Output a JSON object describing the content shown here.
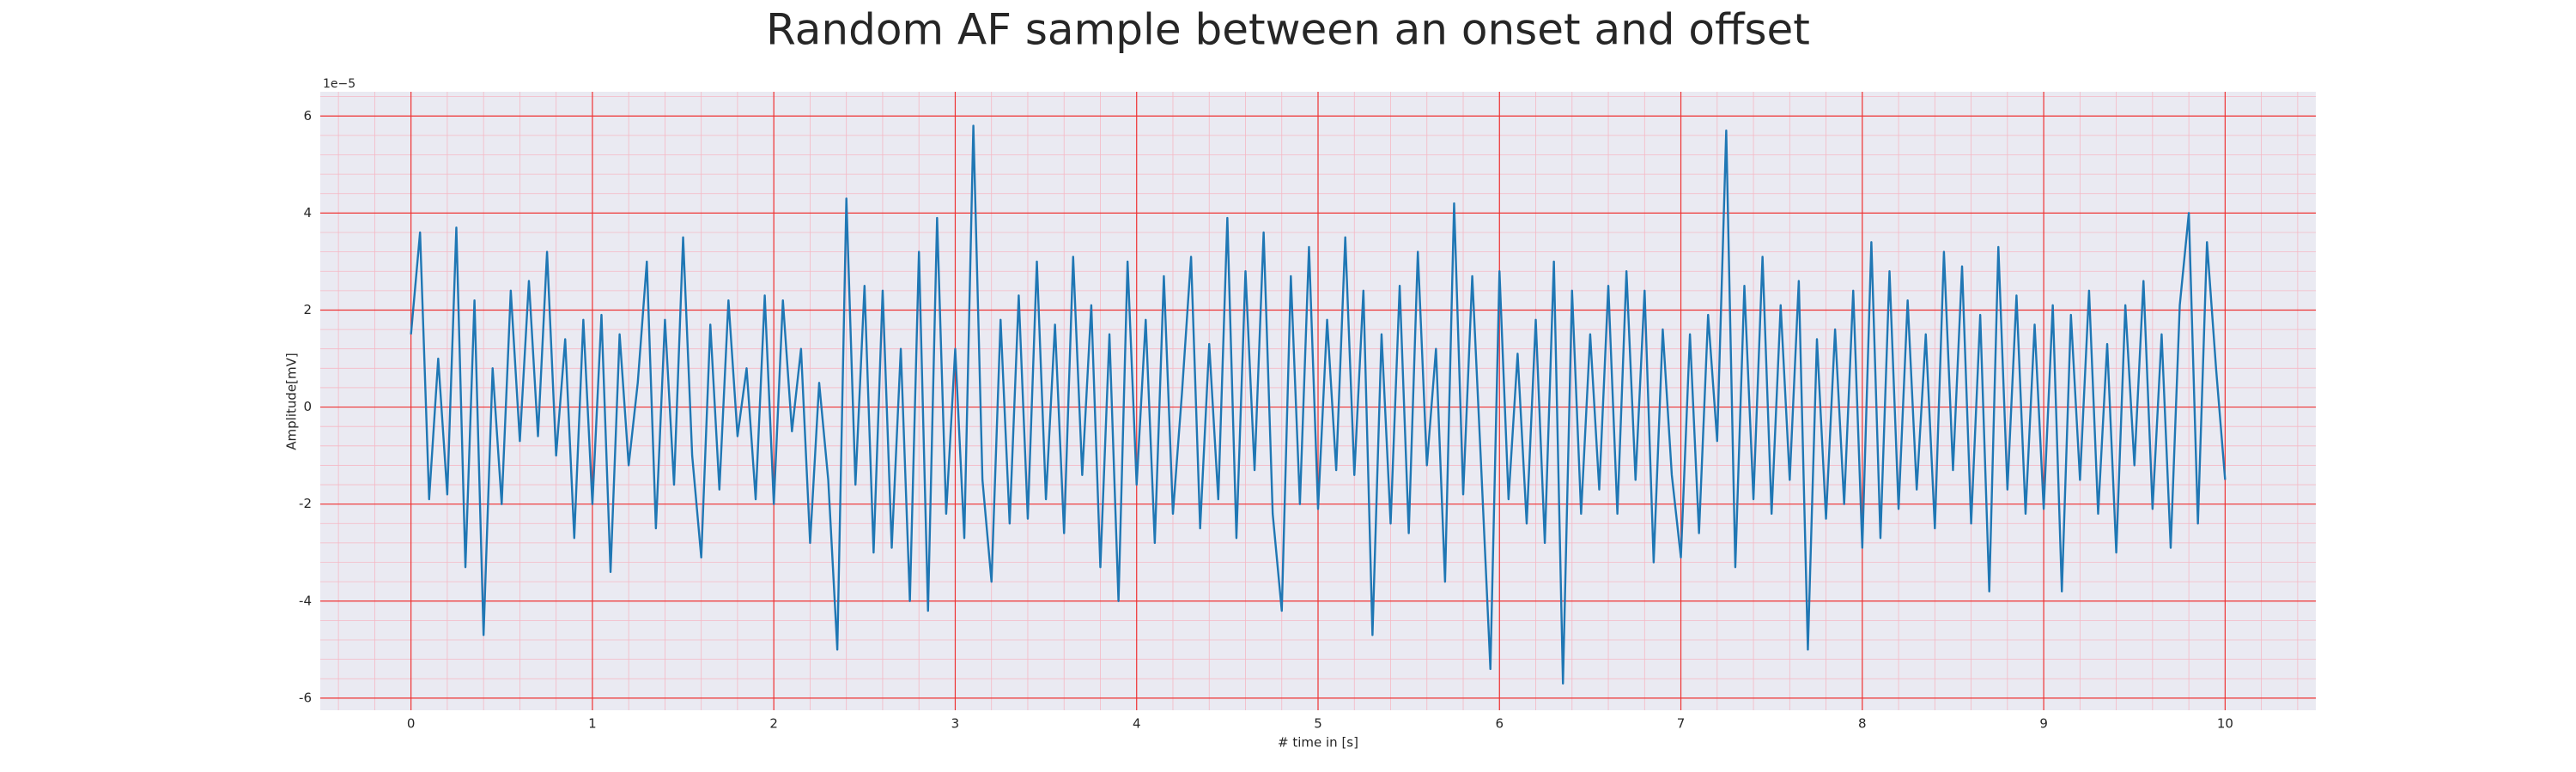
{
  "chart_data": {
    "type": "line",
    "title": "Random AF sample between an onset and offset",
    "x_label": "# time in [s]",
    "y_label": "Amplitude[mV]",
    "y_offset_label": "1e−5",
    "color": "#1f77b4",
    "grid": true,
    "minor_grid": true,
    "xlim": [
      -0.5,
      10.5
    ],
    "ylim": [
      -6.25,
      6.5
    ],
    "xticks": [
      0,
      1,
      2,
      3,
      4,
      5,
      6,
      7,
      8,
      9,
      10
    ],
    "yticks": [
      -6,
      -4,
      -2,
      0,
      2,
      4,
      6
    ],
    "x": [
      0,
      0.05,
      0.1,
      0.15,
      0.2,
      0.25,
      0.3,
      0.35,
      0.4,
      0.45,
      0.5,
      0.55,
      0.6,
      0.65,
      0.7,
      0.75,
      0.8,
      0.85,
      0.9,
      0.95,
      1,
      1.05,
      1.1,
      1.15,
      1.2,
      1.25,
      1.3,
      1.35,
      1.4,
      1.45,
      1.5,
      1.55,
      1.6,
      1.65,
      1.7,
      1.75,
      1.8,
      1.85,
      1.9,
      1.95,
      2,
      2.05,
      2.1,
      2.15,
      2.2,
      2.25,
      2.3,
      2.35,
      2.4,
      2.45,
      2.5,
      2.55,
      2.6,
      2.65,
      2.7,
      2.75,
      2.8,
      2.85,
      2.9,
      2.95,
      3,
      3.05,
      3.1,
      3.15,
      3.2,
      3.25,
      3.3,
      3.35,
      3.4,
      3.45,
      3.5,
      3.55,
      3.6,
      3.65,
      3.7,
      3.75,
      3.8,
      3.85,
      3.9,
      3.95,
      4,
      4.05,
      4.1,
      4.15,
      4.2,
      4.25,
      4.3,
      4.35,
      4.4,
      4.45,
      4.5,
      4.55,
      4.6,
      4.65,
      4.7,
      4.75,
      4.8,
      4.85,
      4.9,
      4.95,
      5,
      5.05,
      5.1,
      5.15,
      5.2,
      5.25,
      5.3,
      5.35,
      5.4,
      5.45,
      5.5,
      5.55,
      5.6,
      5.65,
      5.7,
      5.75,
      5.8,
      5.85,
      5.9,
      5.95,
      6,
      6.05,
      6.1,
      6.15,
      6.2,
      6.25,
      6.3,
      6.35,
      6.4,
      6.45,
      6.5,
      6.55,
      6.6,
      6.65,
      6.7,
      6.75,
      6.8,
      6.85,
      6.9,
      6.95,
      7,
      7.05,
      7.1,
      7.15,
      7.2,
      7.25,
      7.3,
      7.35,
      7.4,
      7.45,
      7.5,
      7.55,
      7.6,
      7.65,
      7.7,
      7.75,
      7.8,
      7.85,
      7.9,
      7.95,
      8,
      8.05,
      8.1,
      8.15,
      8.2,
      8.25,
      8.3,
      8.35,
      8.4,
      8.45,
      8.5,
      8.55,
      8.6,
      8.65,
      8.7,
      8.75,
      8.8,
      8.85,
      8.9,
      8.95,
      9,
      9.05,
      9.1,
      9.15,
      9.2,
      9.25,
      9.3,
      9.35,
      9.4,
      9.45,
      9.5,
      9.55,
      9.6,
      9.65,
      9.7,
      9.75,
      9.8,
      9.85,
      9.9,
      9.95,
      10
    ],
    "values": [
      1.5,
      3.6,
      -1.9,
      1.0,
      -1.8,
      3.7,
      -3.3,
      2.2,
      -4.7,
      0.8,
      -2.0,
      2.4,
      -0.7,
      2.6,
      -0.6,
      3.2,
      -1.0,
      1.4,
      -2.7,
      1.8,
      -2.0,
      1.9,
      -3.4,
      1.5,
      -1.2,
      0.5,
      3.0,
      -2.5,
      1.8,
      -1.6,
      3.5,
      -1.0,
      -3.1,
      1.7,
      -1.7,
      2.2,
      -0.6,
      0.8,
      -1.9,
      2.3,
      -2.0,
      2.2,
      -0.5,
      1.2,
      -2.8,
      0.5,
      -1.5,
      -5.0,
      4.3,
      -1.6,
      2.5,
      -3.0,
      2.4,
      -2.9,
      1.2,
      -4.0,
      3.2,
      -4.2,
      3.9,
      -2.2,
      1.2,
      -2.7,
      5.8,
      -1.5,
      -3.6,
      1.8,
      -2.4,
      2.3,
      -2.3,
      3.0,
      -1.9,
      1.7,
      -2.6,
      3.1,
      -1.4,
      2.1,
      -3.3,
      1.5,
      -4.0,
      3.0,
      -1.6,
      1.8,
      -2.8,
      2.7,
      -2.2,
      0.3,
      3.1,
      -2.5,
      1.3,
      -1.9,
      3.9,
      -2.7,
      2.8,
      -1.3,
      3.6,
      -2.2,
      -4.2,
      2.7,
      -2.0,
      3.3,
      -2.1,
      1.8,
      -1.3,
      3.5,
      -1.4,
      2.4,
      -4.7,
      1.5,
      -2.4,
      2.5,
      -2.6,
      3.2,
      -1.2,
      1.2,
      -3.6,
      4.2,
      -1.8,
      2.7,
      -1.3,
      -5.4,
      2.8,
      -1.9,
      1.1,
      -2.4,
      1.8,
      -2.8,
      3.0,
      -5.7,
      2.4,
      -2.2,
      1.5,
      -1.7,
      2.5,
      -2.2,
      2.8,
      -1.5,
      2.4,
      -3.2,
      1.6,
      -1.4,
      -3.1,
      1.5,
      -2.6,
      1.9,
      -0.7,
      5.7,
      -3.3,
      2.5,
      -1.9,
      3.1,
      -2.2,
      2.1,
      -1.5,
      2.6,
      -5.0,
      1.4,
      -2.3,
      1.6,
      -2.0,
      2.4,
      -2.9,
      3.4,
      -2.7,
      2.8,
      -2.1,
      2.2,
      -1.7,
      1.5,
      -2.5,
      3.2,
      -1.3,
      2.9,
      -2.4,
      1.9,
      -3.8,
      3.3,
      -1.7,
      2.3,
      -2.2,
      1.7,
      -2.1,
      2.1,
      -3.8,
      1.9,
      -1.5,
      2.4,
      -2.2,
      1.3,
      -3.0,
      2.1,
      -1.2,
      2.6,
      -2.1,
      1.5,
      -2.9,
      2.1,
      4.0,
      -2.4,
      3.4,
      0.8,
      -1.5
    ]
  }
}
